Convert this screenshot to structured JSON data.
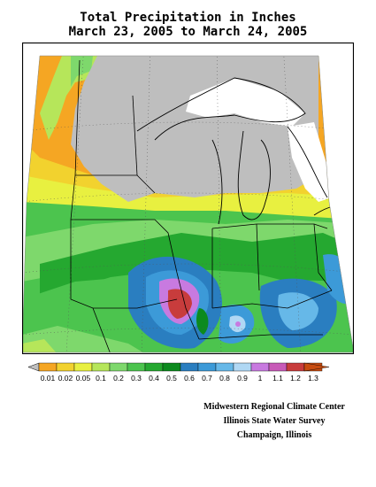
{
  "title": {
    "line1": "Total Precipitation in Inches",
    "line2": "March 23, 2005 to March 24, 2005"
  },
  "legend": {
    "labels": [
      "0.01",
      "0.02",
      "0.05",
      "0.1",
      "0.2",
      "0.3",
      "0.4",
      "0.5",
      "0.6",
      "0.7",
      "0.8",
      "0.9",
      "1",
      "1.1",
      "1.2",
      "1.3"
    ],
    "colors": [
      "#f5a623",
      "#f2d22e",
      "#e8f040",
      "#b6e65a",
      "#7ed86c",
      "#4cc44e",
      "#25a830",
      "#0c8a1e",
      "#2a7ec0",
      "#3c9ad8",
      "#66b8e8",
      "#b0d8f4",
      "#c87ae0",
      "#c85ab8",
      "#c83c3c",
      "#c84c10"
    ],
    "no_data_color": "#bebebe"
  },
  "credits": {
    "line1": "Midwestern Regional Climate Center",
    "line2": "Illinois State Water Survey",
    "line3": "Champaign, Illinois"
  }
}
